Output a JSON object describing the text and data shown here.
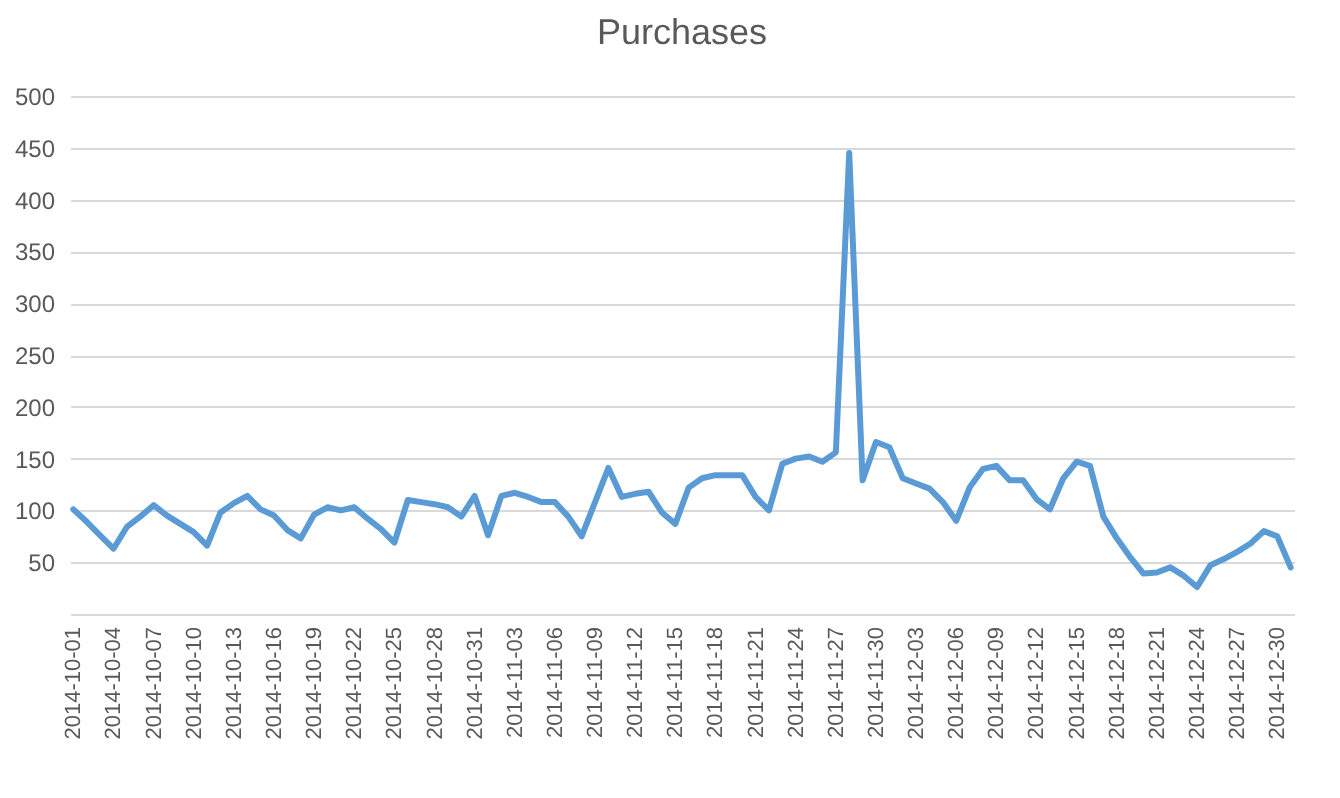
{
  "chart_data": {
    "type": "line",
    "title": "Purchases",
    "categories": [
      "2014-10-01",
      null,
      null,
      "2014-10-04",
      null,
      null,
      "2014-10-07",
      null,
      null,
      "2014-10-10",
      null,
      null,
      "2014-10-13",
      null,
      null,
      "2014-10-16",
      null,
      null,
      "2014-10-19",
      null,
      null,
      "2014-10-22",
      null,
      null,
      "2014-10-25",
      null,
      null,
      "2014-10-28",
      null,
      null,
      "2014-10-31",
      null,
      null,
      "2014-11-03",
      null,
      null,
      "2014-11-06",
      null,
      null,
      "2014-11-09",
      null,
      null,
      "2014-11-12",
      null,
      null,
      "2014-11-15",
      null,
      null,
      "2014-11-18",
      null,
      null,
      "2014-11-21",
      null,
      null,
      "2014-11-24",
      null,
      null,
      "2014-11-27",
      null,
      null,
      "2014-11-30",
      null,
      null,
      "2014-12-03",
      null,
      null,
      "2014-12-06",
      null,
      null,
      "2014-12-09",
      null,
      null,
      "2014-12-12",
      null,
      null,
      "2014-12-15",
      null,
      null,
      "2014-12-18",
      null,
      null,
      "2014-12-21",
      null,
      null,
      "2014-12-24",
      null,
      null,
      "2014-12-27",
      null,
      null,
      "2014-12-30",
      null
    ],
    "values": [
      101,
      89,
      76,
      63,
      84,
      94,
      105,
      95,
      87,
      79,
      66,
      98,
      107,
      114,
      101,
      95,
      81,
      73,
      96,
      103,
      100,
      103,
      92,
      82,
      69,
      110,
      108,
      106,
      103,
      94,
      114,
      76,
      114,
      117,
      113,
      108,
      108,
      94,
      75,
      108,
      141,
      113,
      116,
      118,
      98,
      87,
      122,
      131,
      134,
      134,
      134,
      113,
      100,
      145,
      150,
      152,
      147,
      156,
      445,
      129,
      166,
      161,
      131,
      126,
      121,
      108,
      90,
      122,
      140,
      143,
      129,
      129,
      111,
      101,
      131,
      147,
      143,
      94,
      73,
      55,
      39,
      40,
      45,
      37,
      26,
      47,
      53,
      60,
      68,
      80,
      75,
      45
    ],
    "color": "#5b9bd5",
    "ylim": [
      0,
      500
    ],
    "yticks": [
      50,
      100,
      150,
      200,
      250,
      300,
      350,
      400,
      450,
      500
    ],
    "grid": "y"
  }
}
